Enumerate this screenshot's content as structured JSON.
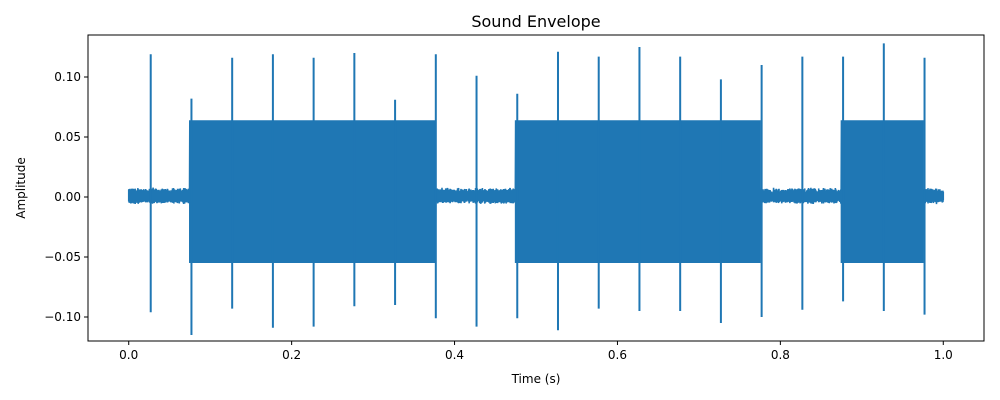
{
  "chart_data": {
    "type": "line",
    "title": "Sound Envelope",
    "xlabel": "Time (s)",
    "ylabel": "Amplitude",
    "xlim": [
      -0.05,
      1.05
    ],
    "ylim": [
      -0.12,
      0.135
    ],
    "xticks": [
      0.0,
      0.2,
      0.4,
      0.6,
      0.8,
      1.0
    ],
    "xtick_labels": [
      "0.0",
      "0.2",
      "0.4",
      "0.6",
      "0.8",
      "1.0"
    ],
    "yticks": [
      -0.1,
      -0.05,
      0.0,
      0.05,
      0.1
    ],
    "ytick_labels": [
      "−0.10",
      "−0.05",
      "0.00",
      "0.05",
      "0.10"
    ],
    "grid": false,
    "line_color": "#1f77b4",
    "series": [
      {
        "duration_s": 1.0,
        "quiet_band": [
          -0.006,
          0.008
        ],
        "loud_segments": [
          {
            "start": 0.075,
            "end": 0.377,
            "min": -0.055,
            "max": 0.064
          },
          {
            "start": 0.475,
            "end": 0.775,
            "min": -0.055,
            "max": 0.064
          },
          {
            "start": 0.875,
            "end": 0.975,
            "min": -0.055,
            "max": 0.064
          }
        ],
        "spikes": [
          {
            "t": 0.027,
            "max": 0.119,
            "min": -0.096
          },
          {
            "t": 0.077,
            "max": 0.082,
            "min": -0.115
          },
          {
            "t": 0.127,
            "max": 0.116,
            "min": -0.093
          },
          {
            "t": 0.177,
            "max": 0.119,
            "min": -0.109
          },
          {
            "t": 0.227,
            "max": 0.116,
            "min": -0.108
          },
          {
            "t": 0.277,
            "max": 0.12,
            "min": -0.091
          },
          {
            "t": 0.327,
            "max": 0.081,
            "min": -0.09
          },
          {
            "t": 0.377,
            "max": 0.119,
            "min": -0.101
          },
          {
            "t": 0.427,
            "max": 0.101,
            "min": -0.108
          },
          {
            "t": 0.477,
            "max": 0.086,
            "min": -0.101
          },
          {
            "t": 0.527,
            "max": 0.121,
            "min": -0.111
          },
          {
            "t": 0.577,
            "max": 0.117,
            "min": -0.093
          },
          {
            "t": 0.627,
            "max": 0.125,
            "min": -0.095
          },
          {
            "t": 0.677,
            "max": 0.117,
            "min": -0.095
          },
          {
            "t": 0.727,
            "max": 0.098,
            "min": -0.105
          },
          {
            "t": 0.777,
            "max": 0.11,
            "min": -0.1
          },
          {
            "t": 0.827,
            "max": 0.117,
            "min": -0.094
          },
          {
            "t": 0.877,
            "max": 0.117,
            "min": -0.087
          },
          {
            "t": 0.927,
            "max": 0.128,
            "min": -0.095
          },
          {
            "t": 0.977,
            "max": 0.116,
            "min": -0.098
          }
        ]
      }
    ]
  }
}
